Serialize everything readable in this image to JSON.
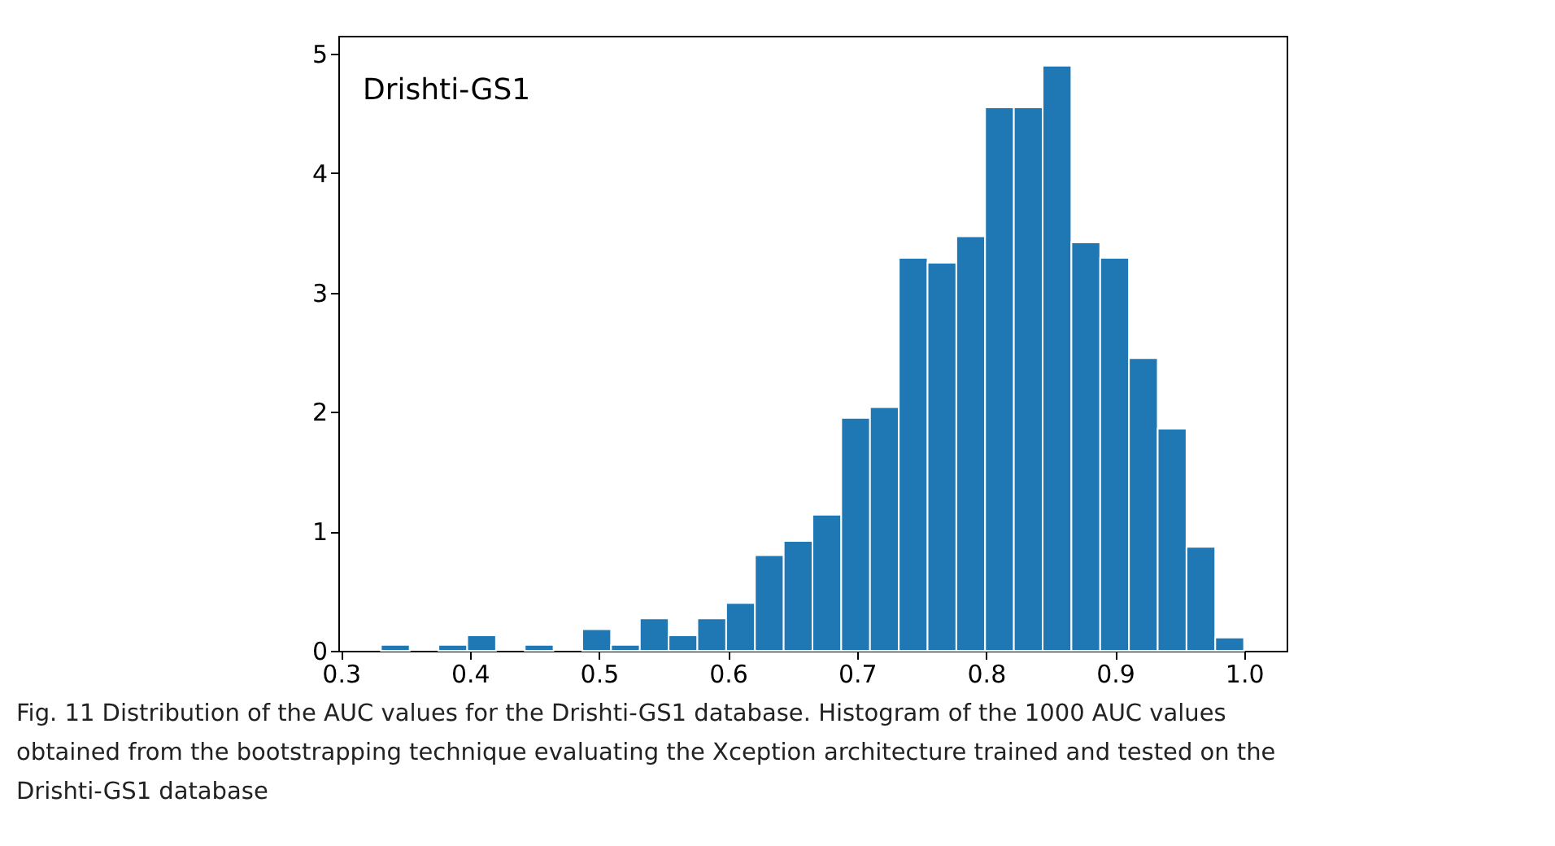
{
  "chart_data": {
    "type": "histogram",
    "bins": [
      0.331,
      0.3533,
      0.3756,
      0.3979,
      0.4202,
      0.4425,
      0.4648,
      0.4871,
      0.5094,
      0.5317,
      0.554,
      0.5763,
      0.5986,
      0.6209,
      0.6432,
      0.6655,
      0.6878,
      0.7101,
      0.7324,
      0.7547,
      0.777,
      0.7993,
      0.8216,
      0.8439,
      0.8662,
      0.8885,
      0.9108,
      0.9331,
      0.9554,
      0.9777,
      1.0
    ],
    "values": [
      0.05,
      0,
      0.05,
      0.13,
      0,
      0.05,
      0,
      0.18,
      0.05,
      0.27,
      0.13,
      0.27,
      0.4,
      0.8,
      0.92,
      1.14,
      1.95,
      2.04,
      3.29,
      3.25,
      3.47,
      4.55,
      4.55,
      4.9,
      3.42,
      3.29,
      2.45,
      1.86,
      0.87,
      0.11
    ],
    "color": "#1f77b4",
    "xlim": [
      0.298,
      1.033
    ],
    "xticks": [
      {
        "value": 0.3,
        "label": "0.3"
      },
      {
        "value": 0.4,
        "label": "0.4"
      },
      {
        "value": 0.5,
        "label": "0.5"
      },
      {
        "value": 0.6,
        "label": "0.6"
      },
      {
        "value": 0.7,
        "label": "0.7"
      },
      {
        "value": 0.8,
        "label": "0.8"
      },
      {
        "value": 0.9,
        "label": "0.9"
      },
      {
        "value": 1.0,
        "label": "1.0"
      }
    ],
    "ylim": [
      0,
      5.15
    ],
    "yticks": [
      0,
      1,
      2,
      3,
      4,
      5
    ],
    "grid": false,
    "annotations": [
      "Drishti-GS1",
      "Fig. 11  Distribution of the AUC values for the Drishti-GS1 database. Histogram of the 1000 AUC values obtained from the bootstrapping technique evaluating the Xception architecture trained and tested on the Drishti-GS1 database"
    ]
  }
}
